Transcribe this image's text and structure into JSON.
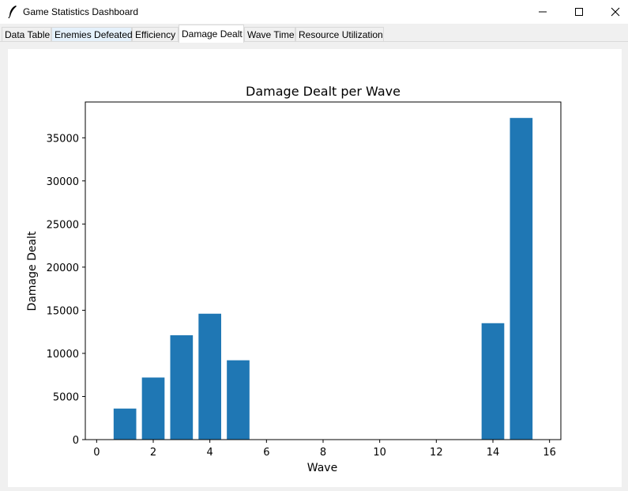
{
  "window": {
    "title": "Game Statistics Dashboard",
    "app_icon": "feather-icon",
    "controls": [
      "minimize-icon",
      "maximize-icon",
      "close-icon"
    ]
  },
  "tabs": [
    {
      "label": "Data Table",
      "active": false
    },
    {
      "label": "Enemies Defeated",
      "active": false
    },
    {
      "label": "Efficiency",
      "active": false
    },
    {
      "label": "Damage Dealt",
      "active": true
    },
    {
      "label": "Wave Time",
      "active": false
    },
    {
      "label": "Resource Utilization",
      "active": false
    }
  ],
  "chart_data": {
    "type": "bar",
    "title": "Damage Dealt per Wave",
    "xlabel": "Wave",
    "ylabel": "Damage Dealt",
    "x": [
      1,
      2,
      3,
      4,
      5,
      14,
      15
    ],
    "values": [
      3600,
      7200,
      12100,
      14600,
      9200,
      13500,
      37300
    ],
    "xlim": [
      -0.4,
      16.4
    ],
    "ylim": [
      0,
      39150
    ],
    "xticks": [
      0,
      2,
      4,
      6,
      8,
      10,
      12,
      14,
      16
    ],
    "yticks": [
      0,
      5000,
      10000,
      15000,
      20000,
      25000,
      30000,
      35000
    ],
    "bar_color": "#1f77b4",
    "grid": false
  }
}
